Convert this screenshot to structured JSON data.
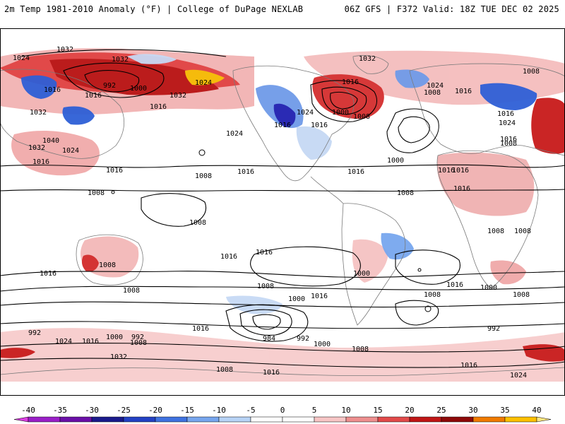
{
  "header": {
    "left": "2m Temp 1981-2010 Anomaly (°F) | College of DuPage NEXLAB",
    "right": "06Z GFS | F372 Valid: 18Z TUE DEC 02 2025"
  },
  "map": {
    "projection": "global-cylindrical",
    "field": "2m temperature anomaly (shaded)",
    "overlay": "mean sea level pressure isobars (hPa)",
    "isobar_labels": [
      "1024",
      "1032",
      "1032",
      "992",
      "1000",
      "1024",
      "1016",
      "1032",
      "1016",
      "1016",
      "1032",
      "1040",
      "1024",
      "1032",
      "1016",
      "1016",
      "1024",
      "1008",
      "1008",
      "1016",
      "1032",
      "1016",
      "1016",
      "1000",
      "1008",
      "1024",
      "1016",
      "1024",
      "1016",
      "1016",
      "1000",
      "1008",
      "1016",
      "1008",
      "1016",
      "1024",
      "1016",
      "1008",
      "1016",
      "1016",
      "1008",
      "1008",
      "1008",
      "1016",
      "1016",
      "1008",
      "1000",
      "1016",
      "1008",
      "1000",
      "1016",
      "1008",
      "1008",
      "1000",
      "1008",
      "1008",
      "992",
      "1016",
      "992",
      "992",
      "1000",
      "1024",
      "1016",
      "1008",
      "1032",
      "1016",
      "984",
      "992",
      "1000",
      "1008",
      "1016",
      "1008",
      "1016",
      "1024"
    ],
    "colors": {
      "extreme_cold": "#1f1fb0",
      "strong_cold": "#2e5fd6",
      "moderate_cold": "#6f9ae8",
      "light_cold": "#c6d9f4",
      "neutral": "#ffffff",
      "light_warm": "#f7c7c7",
      "moderate_warm": "#ee8c8c",
      "strong_warm": "#e03a3a",
      "extreme_warm": "#b80f0f",
      "very_extreme_warm": "#f5b800",
      "land_outline": "#7a7a7a",
      "isobar": "#000000"
    }
  },
  "colorbar": {
    "ticks": [
      "-40",
      "-35",
      "-30",
      "-25",
      "-20",
      "-15",
      "-10",
      "-5",
      "0",
      "5",
      "10",
      "15",
      "20",
      "25",
      "30",
      "35",
      "40"
    ],
    "colors": [
      "#d93ee0",
      "#9a1fc8",
      "#6a0fa8",
      "#1a1a8c",
      "#2341c4",
      "#3f72e0",
      "#77a6ee",
      "#b7d3f6",
      "#ffffff",
      "#ffffff",
      "#f7c5c5",
      "#ee8f8f",
      "#e24a4a",
      "#c01616",
      "#8e0a0a",
      "#f07a00",
      "#ffc000",
      "#ffe680"
    ]
  }
}
